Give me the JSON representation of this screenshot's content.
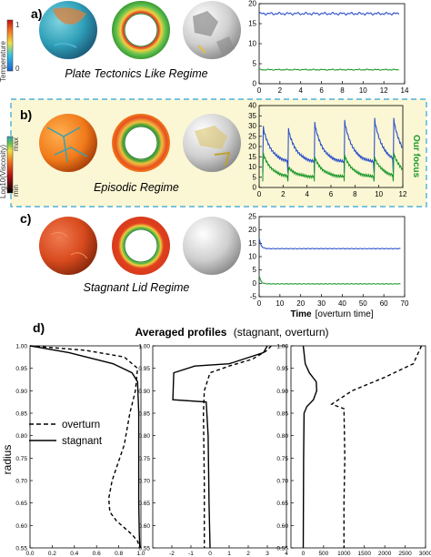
{
  "panels": {
    "a": {
      "letter": "a)",
      "regime": "Plate Tectonics Like Regime",
      "colorbar": {
        "title": "Temperature",
        "min_label": "0",
        "max_label": "1"
      }
    },
    "b": {
      "letter": "b)",
      "regime": "Episodic Regime",
      "colorbar": {
        "title": "Log10(Viscosity)",
        "min_label": "min",
        "max_label": "max"
      },
      "focus_label": "Our focus",
      "highlight_color": "#fbf7d4",
      "highlight_border": "#4fb0d8"
    },
    "c": {
      "letter": "c)",
      "regime": "Stagnant Lid Regime"
    },
    "d": {
      "letter": "d)",
      "title_bold": "Averaged profiles",
      "title_rest": "(stagnant, overturn)",
      "legend": [
        "overturn",
        "stagnant"
      ],
      "ylabel": "radius"
    }
  },
  "chart_data": [
    {
      "id": "a",
      "type": "line",
      "xlim": [
        0,
        14
      ],
      "ylim": [
        0,
        20
      ],
      "xticks": [
        "0",
        "2",
        "4",
        "6",
        "8",
        "10",
        "12",
        "14"
      ],
      "yticks": [
        "0",
        "5",
        "10",
        "15",
        "20"
      ],
      "series": [
        {
          "color": "#2c4fc9",
          "level": 17.5,
          "noise": 0.35,
          "x": [
            0,
            13.5
          ]
        },
        {
          "color": "#1d9a2e",
          "level": 3.5,
          "noise": 0.15,
          "x": [
            0,
            13.5
          ]
        }
      ]
    },
    {
      "id": "b",
      "type": "line",
      "xlim": [
        0,
        12
      ],
      "ylim": [
        0,
        40
      ],
      "xticks": [
        "0",
        "2",
        "4",
        "6",
        "8",
        "10",
        "12"
      ],
      "yticks": [
        "0",
        "5",
        "10",
        "15",
        "20",
        "25",
        "30",
        "35",
        "40"
      ],
      "events": [
        0.3,
        2.4,
        4.6,
        7.1,
        9.6,
        11.2
      ],
      "series": [
        {
          "color": "#2c4fc9",
          "peaks": [
            30,
            29,
            32,
            33,
            34,
            34
          ],
          "base": 12
        },
        {
          "color": "#1d9a2e",
          "peaks": [
            17,
            10,
            15,
            16,
            15,
            17
          ],
          "base": 5
        }
      ]
    },
    {
      "id": "c",
      "type": "line",
      "xlim": [
        0,
        70
      ],
      "ylim": [
        -5,
        25
      ],
      "xticks": [
        "0",
        "10",
        "20",
        "30",
        "40",
        "50",
        "60",
        "70"
      ],
      "yticks": [
        "-5",
        "0",
        "5",
        "10",
        "15",
        "20",
        "25"
      ],
      "xlabel_bold": "Time",
      "xlabel_rest": "[overturn time]",
      "series": [
        {
          "color": "#2c4fc9",
          "start": 17,
          "level": 13,
          "x": [
            0,
            68
          ]
        },
        {
          "color": "#1d9a2e",
          "start": 3,
          "level": -0.2,
          "x": [
            0,
            68
          ]
        }
      ]
    },
    {
      "id": "d1",
      "type": "line",
      "xlim": [
        0,
        1
      ],
      "ylim": [
        0.55,
        1.0
      ],
      "xticks": [
        "0.0",
        "0.2",
        "0.4",
        "0.6",
        "0.8",
        "1.0"
      ],
      "yticks": [
        "0.55",
        "0.60",
        "0.65",
        "0.70",
        "0.75",
        "0.80",
        "0.85",
        "0.90",
        "0.95",
        "1.00"
      ],
      "series": [
        {
          "name": "stagnant",
          "dash": false,
          "x": [
            0.0,
            0.35,
            0.75,
            0.92,
            0.97,
            0.98,
            0.98,
            0.98,
            0.985,
            0.99
          ],
          "y": [
            1.0,
            0.985,
            0.96,
            0.94,
            0.92,
            0.85,
            0.75,
            0.65,
            0.58,
            0.55
          ]
        },
        {
          "name": "overturn",
          "dash": true,
          "x": [
            0.0,
            0.5,
            0.85,
            0.97,
            0.95,
            0.9,
            0.85,
            0.74,
            0.71,
            0.72,
            0.78,
            0.85,
            0.92,
            0.97,
            0.99
          ],
          "y": [
            1.0,
            0.99,
            0.975,
            0.95,
            0.9,
            0.85,
            0.78,
            0.7,
            0.66,
            0.63,
            0.61,
            0.595,
            0.58,
            0.565,
            0.55
          ]
        }
      ]
    },
    {
      "id": "d2",
      "type": "line",
      "xlim": [
        -3,
        4
      ],
      "ylim": [
        0.55,
        1.0
      ],
      "xticks": [
        "-2",
        "-1",
        "0",
        "1",
        "2",
        "3",
        "4"
      ],
      "yticks": [
        "0.55",
        "0.60",
        "0.65",
        "0.70",
        "0.75",
        "0.80",
        "0.85",
        "0.90",
        "0.95",
        "1.00"
      ],
      "series": [
        {
          "name": "stagnant",
          "dash": false,
          "x": [
            3.0,
            2.8,
            1.0,
            -0.8,
            -1.9,
            -1.95,
            -0.2,
            -0.1,
            -0.05,
            0.0
          ],
          "y": [
            1.0,
            0.985,
            0.96,
            0.955,
            0.94,
            0.88,
            0.875,
            0.8,
            0.65,
            0.55
          ]
        },
        {
          "name": "overturn",
          "dash": true,
          "x": [
            3.2,
            3.0,
            2.2,
            1.0,
            0.0,
            -0.3,
            -0.35,
            -0.3,
            -0.3
          ],
          "y": [
            1.0,
            0.99,
            0.97,
            0.955,
            0.94,
            0.9,
            0.85,
            0.7,
            0.55
          ]
        }
      ]
    },
    {
      "id": "d3",
      "type": "line",
      "xlim": [
        -300,
        3000
      ],
      "ylim": [
        0.55,
        1.0
      ],
      "xticks": [
        "0",
        "500",
        "1000",
        "1500",
        "2000",
        "2500",
        "3000"
      ],
      "yticks": [
        "0.55",
        "0.60",
        "0.65",
        "0.70",
        "0.75",
        "0.80",
        "0.85",
        "0.90",
        "0.95",
        "1.00"
      ],
      "series": [
        {
          "name": "stagnant",
          "dash": false,
          "x": [
            0,
            50,
            150,
            320,
            330,
            250,
            90,
            20,
            10,
            5,
            0
          ],
          "y": [
            1.0,
            0.96,
            0.94,
            0.92,
            0.9,
            0.88,
            0.865,
            0.85,
            0.75,
            0.65,
            0.55
          ]
        },
        {
          "name": "overturn",
          "dash": true,
          "x": [
            2900,
            2850,
            2700,
            2000,
            1200,
            700,
            1000,
            1020,
            1000,
            1000
          ],
          "y": [
            1.0,
            0.99,
            0.96,
            0.93,
            0.9,
            0.87,
            0.86,
            0.75,
            0.65,
            0.55
          ]
        }
      ]
    }
  ]
}
